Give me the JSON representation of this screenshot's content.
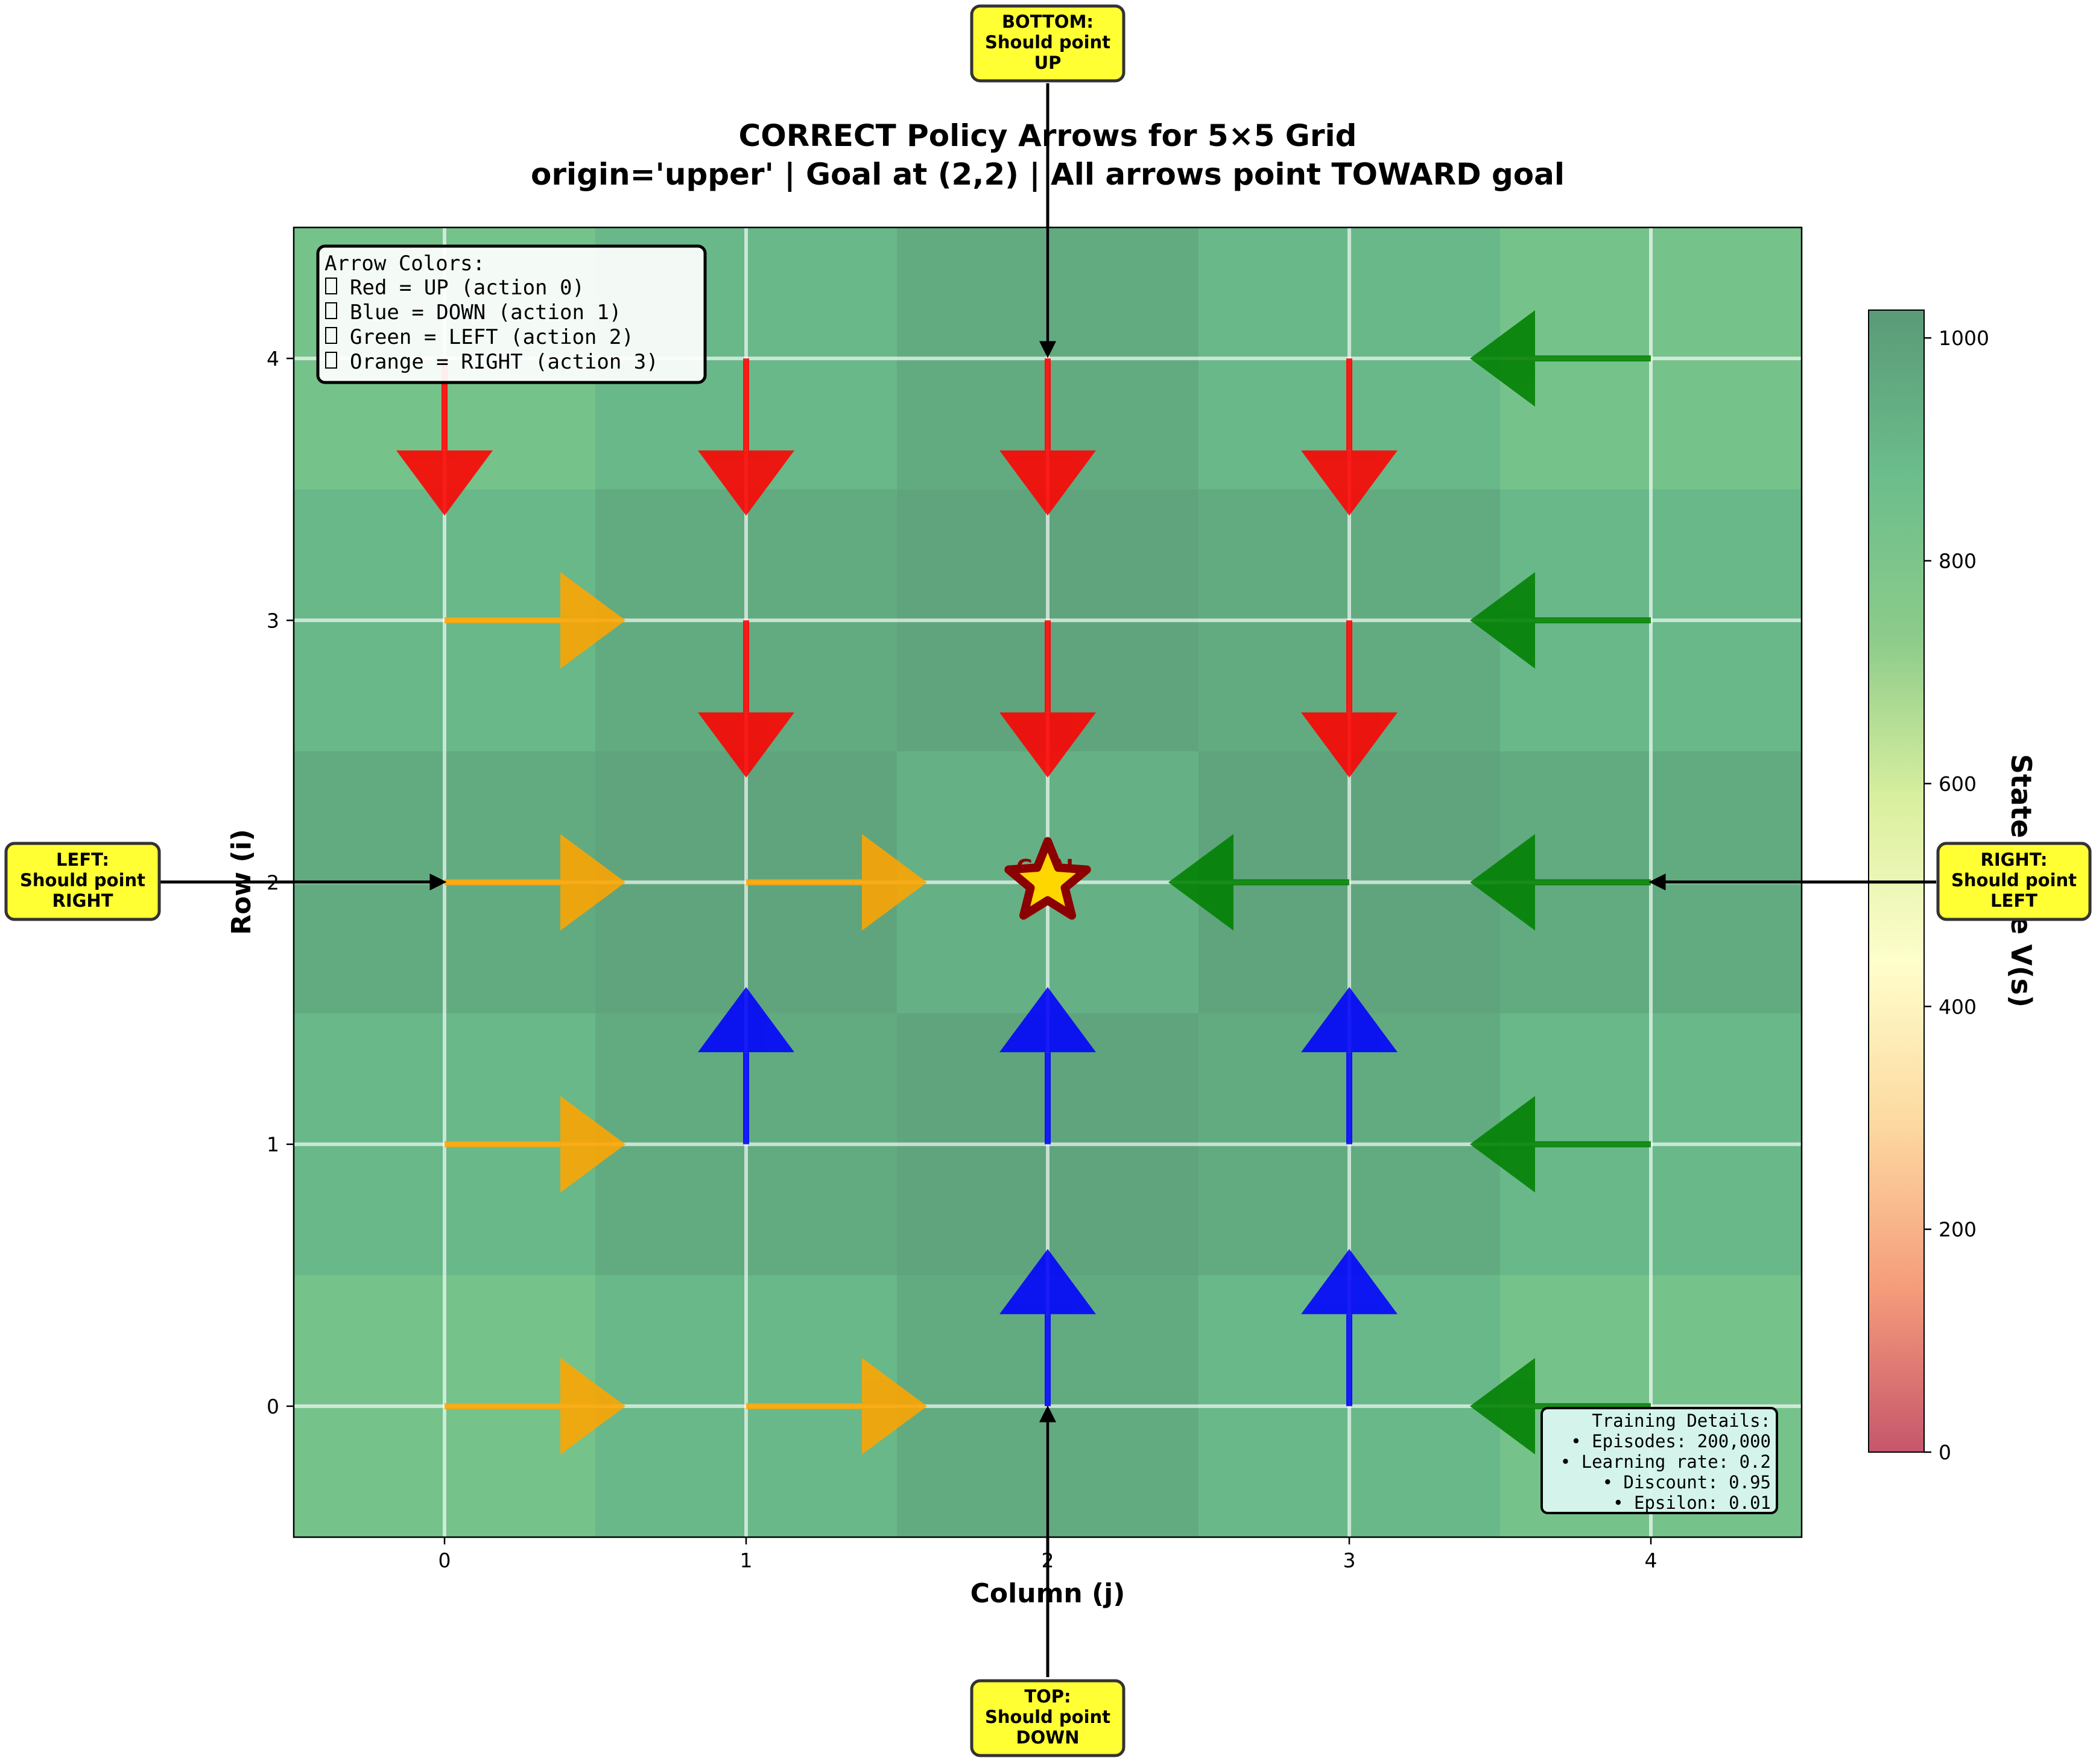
{
  "chart_data": {
    "type": "heatmap",
    "title_line1": "CORRECT Policy Arrows for 5×5 Grid",
    "title_line2": "origin='upper' | Goal at (2,2) | All arrows point TOWARD goal",
    "xlabel": "Column (j)",
    "ylabel": "Row (i)",
    "x_ticks": [
      "0",
      "1",
      "2",
      "3",
      "4"
    ],
    "y_ticks": [
      "0",
      "1",
      "2",
      "3",
      "4"
    ],
    "xlim": [
      -0.5,
      4.5
    ],
    "ylim": [
      -0.5,
      4.5
    ],
    "grid": true,
    "value_grid_rows_top_to_bottom": [
      [
        830,
        900,
        955,
        900,
        830
      ],
      [
        900,
        955,
        985,
        955,
        900
      ],
      [
        955,
        985,
        930,
        985,
        955
      ],
      [
        900,
        955,
        985,
        955,
        900
      ],
      [
        830,
        900,
        955,
        900,
        830
      ]
    ],
    "colorbar": {
      "label": "State Value V(s)",
      "min": 0,
      "max": 1025,
      "ticks": [
        0,
        200,
        400,
        600,
        800,
        1000
      ],
      "colormap": [
        "#c6566b",
        "#f59c7b",
        "#fdd8a0",
        "#fefecb",
        "#d9ef9f",
        "#8ccb8a",
        "#6bbd8c",
        "#5a9a77"
      ]
    },
    "arrows": [
      {
        "row": 4,
        "col": 0,
        "dir": "down",
        "color": "#ff0000"
      },
      {
        "row": 4,
        "col": 1,
        "dir": "down",
        "color": "#ff0000"
      },
      {
        "row": 4,
        "col": 2,
        "dir": "down",
        "color": "#ff0000"
      },
      {
        "row": 4,
        "col": 3,
        "dir": "down",
        "color": "#ff0000"
      },
      {
        "row": 4,
        "col": 4,
        "dir": "left",
        "color": "#008000"
      },
      {
        "row": 3,
        "col": 0,
        "dir": "right",
        "color": "#ffa500"
      },
      {
        "row": 3,
        "col": 1,
        "dir": "down",
        "color": "#ff0000"
      },
      {
        "row": 3,
        "col": 2,
        "dir": "down",
        "color": "#ff0000"
      },
      {
        "row": 3,
        "col": 3,
        "dir": "down",
        "color": "#ff0000"
      },
      {
        "row": 3,
        "col": 4,
        "dir": "left",
        "color": "#008000"
      },
      {
        "row": 2,
        "col": 0,
        "dir": "right",
        "color": "#ffa500"
      },
      {
        "row": 2,
        "col": 1,
        "dir": "right",
        "color": "#ffa500"
      },
      {
        "row": 2,
        "col": 3,
        "dir": "left",
        "color": "#008000"
      },
      {
        "row": 2,
        "col": 4,
        "dir": "left",
        "color": "#008000"
      },
      {
        "row": 1,
        "col": 0,
        "dir": "right",
        "color": "#ffa500"
      },
      {
        "row": 1,
        "col": 1,
        "dir": "up",
        "color": "#0000ff"
      },
      {
        "row": 1,
        "col": 2,
        "dir": "up",
        "color": "#0000ff"
      },
      {
        "row": 1,
        "col": 3,
        "dir": "up",
        "color": "#0000ff"
      },
      {
        "row": 1,
        "col": 4,
        "dir": "left",
        "color": "#008000"
      },
      {
        "row": 0,
        "col": 0,
        "dir": "right",
        "color": "#ffa500"
      },
      {
        "row": 0,
        "col": 1,
        "dir": "right",
        "color": "#ffa500"
      },
      {
        "row": 0,
        "col": 2,
        "dir": "up",
        "color": "#0000ff"
      },
      {
        "row": 0,
        "col": 3,
        "dir": "up",
        "color": "#0000ff"
      },
      {
        "row": 0,
        "col": 4,
        "dir": "left",
        "color": "#008000"
      }
    ],
    "goal": {
      "row": 2,
      "col": 2,
      "label": "GOAL"
    }
  },
  "legend": {
    "title": "Arrow Colors:",
    "items": [
      "Red = UP (action 0)",
      "Blue = DOWN (action 1)",
      "Green = LEFT (action 2)",
      "Orange = RIGHT (action 3)"
    ]
  },
  "training": {
    "lines": [
      "Training Details:",
      "• Episodes: 200,000",
      "• Learning rate: 0.2",
      "• Discount: 0.95",
      "• Epsilon: 0.01"
    ]
  },
  "callouts": {
    "bottom": [
      "BOTTOM:",
      "Should point",
      "UP"
    ],
    "top": [
      "TOP:",
      "Should point",
      "DOWN"
    ],
    "left": [
      "LEFT:",
      "Should point",
      "RIGHT"
    ],
    "right": [
      "RIGHT:",
      "Should point",
      "LEFT"
    ]
  }
}
